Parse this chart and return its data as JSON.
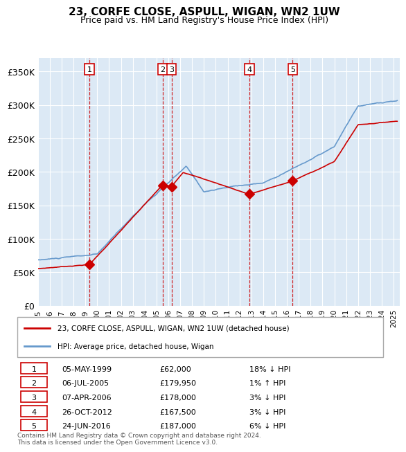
{
  "title": "23, CORFE CLOSE, ASPULL, WIGAN, WN2 1UW",
  "subtitle": "Price paid vs. HM Land Registry's House Price Index (HPI)",
  "background_color": "#dce9f5",
  "plot_bg_color": "#dce9f5",
  "transactions": [
    {
      "num": 1,
      "date": "05-MAY-1999",
      "year": 1999.35,
      "price": 62000,
      "hpi_rel": "18% ↓ HPI"
    },
    {
      "num": 2,
      "date": "06-JUL-2005",
      "year": 2005.51,
      "price": 179950,
      "hpi_rel": "1% ↑ HPI"
    },
    {
      "num": 3,
      "date": "07-APR-2006",
      "year": 2006.27,
      "price": 178000,
      "hpi_rel": "3% ↓ HPI"
    },
    {
      "num": 4,
      "date": "26-OCT-2012",
      "year": 2012.82,
      "price": 167500,
      "hpi_rel": "3% ↓ HPI"
    },
    {
      "num": 5,
      "date": "24-JUN-2016",
      "year": 2016.48,
      "price": 187000,
      "hpi_rel": "6% ↓ HPI"
    }
  ],
  "hpi_line_color": "#6699cc",
  "sold_line_color": "#cc0000",
  "sold_marker_color": "#cc0000",
  "vline_color": "#cc0000",
  "vline_style": "--",
  "ylim": [
    0,
    370000
  ],
  "xlim_start": 1995,
  "xlim_end": 2025.5,
  "yticks": [
    0,
    50000,
    100000,
    150000,
    200000,
    250000,
    300000,
    350000
  ],
  "ytick_labels": [
    "£0",
    "£50K",
    "£100K",
    "£150K",
    "£200K",
    "£250K",
    "£300K",
    "£350K"
  ],
  "legend_label_sold": "23, CORFE CLOSE, ASPULL, WIGAN, WN2 1UW (detached house)",
  "legend_label_hpi": "HPI: Average price, detached house, Wigan",
  "footer": "Contains HM Land Registry data © Crown copyright and database right 2024.\nThis data is licensed under the Open Government Licence v3.0.",
  "table_rows": [
    [
      "1",
      "05-MAY-1999",
      "£62,000",
      "18% ↓ HPI"
    ],
    [
      "2",
      "06-JUL-2005",
      "£179,950",
      "1% ↑ HPI"
    ],
    [
      "3",
      "07-APR-2006",
      "£178,000",
      "3% ↓ HPI"
    ],
    [
      "4",
      "26-OCT-2012",
      "£167,500",
      "3% ↓ HPI"
    ],
    [
      "5",
      "24-JUN-2016",
      "£187,000",
      "6% ↓ HPI"
    ]
  ]
}
